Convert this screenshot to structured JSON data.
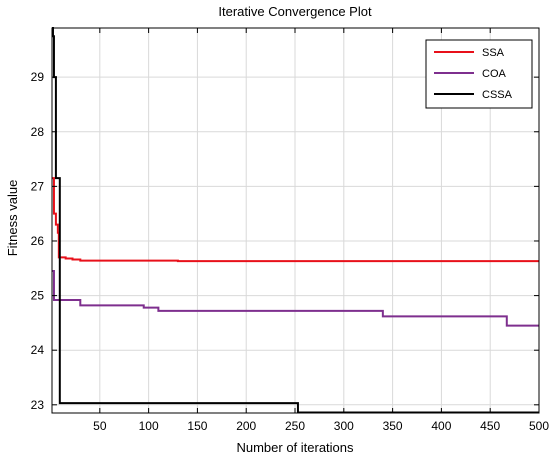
{
  "chart_data": {
    "type": "line",
    "title": "Iterative Convergence Plot",
    "xlabel": "Number of iterations",
    "ylabel": "Fitness value",
    "xlim": [
      1,
      500
    ],
    "ylim": [
      22.85,
      29.9
    ],
    "xticks": [
      50,
      100,
      150,
      200,
      250,
      300,
      350,
      400,
      450,
      500
    ],
    "yticks": [
      23,
      24,
      25,
      26,
      27,
      28,
      29
    ],
    "grid": true,
    "legend_position": "top-right",
    "series": [
      {
        "name": "SSA",
        "color": "#e8101a",
        "step": true,
        "points": [
          [
            1,
            27.15
          ],
          [
            3,
            26.5
          ],
          [
            5,
            26.3
          ],
          [
            7,
            26.15
          ],
          [
            8,
            25.7
          ],
          [
            15,
            25.68
          ],
          [
            22,
            25.66
          ],
          [
            30,
            25.64
          ],
          [
            130,
            25.63
          ],
          [
            500,
            25.63
          ]
        ]
      },
      {
        "name": "COA",
        "color": "#7e2f8e",
        "step": true,
        "points": [
          [
            1,
            25.45
          ],
          [
            3,
            24.92
          ],
          [
            30,
            24.82
          ],
          [
            95,
            24.78
          ],
          [
            110,
            24.72
          ],
          [
            340,
            24.62
          ],
          [
            467,
            24.45
          ],
          [
            500,
            24.45
          ]
        ]
      },
      {
        "name": "CSSA",
        "color": "#000000",
        "step": true,
        "points": [
          [
            1,
            29.9
          ],
          [
            2,
            29.75
          ],
          [
            3,
            29.0
          ],
          [
            5,
            27.15
          ],
          [
            9,
            23.03
          ],
          [
            253,
            22.86
          ],
          [
            500,
            22.86
          ]
        ]
      }
    ]
  }
}
